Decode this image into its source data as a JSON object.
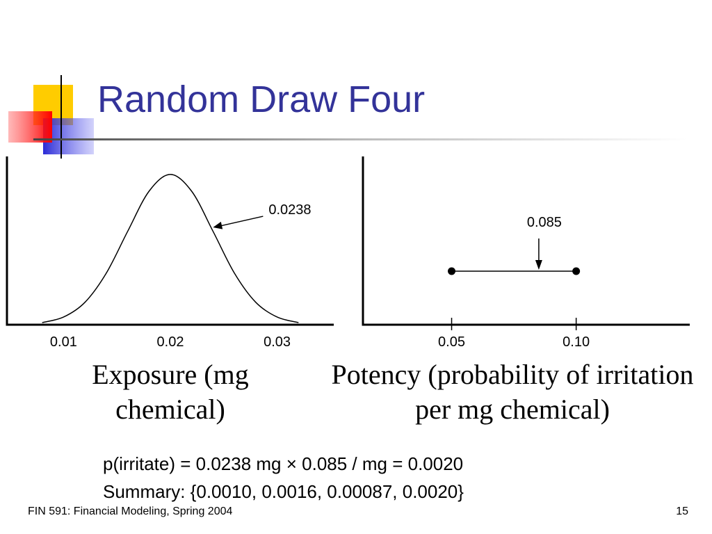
{
  "title": "Random Draw Four",
  "chart_data": [
    {
      "type": "line",
      "axis_label": "Exposure (mg chemical)",
      "x": [
        0.008,
        0.01,
        0.012,
        0.014,
        0.016,
        0.018,
        0.02,
        0.022,
        0.024,
        0.026,
        0.028,
        0.03,
        0.032
      ],
      "values": [
        0.014,
        0.051,
        0.149,
        0.343,
        0.621,
        0.888,
        1,
        0.888,
        0.621,
        0.343,
        0.149,
        0.051,
        0.014
      ],
      "xlim": [
        0.0047,
        0.0353
      ],
      "ylim": [
        0,
        1.12
      ],
      "xticks": [
        0.01,
        0.02,
        0.03
      ],
      "annotation": 0.0238,
      "color": "#000000"
    },
    {
      "type": "range",
      "axis_label": "Potency (probability of irritation per mg chemical)",
      "range": [
        0.05,
        0.1
      ],
      "xlim": [
        0.0144,
        0.1456
      ],
      "xticks": [
        0.05,
        {
          "value": 0.1,
          "label": "0.10"
        }
      ],
      "annotation": 0.085,
      "color": "#000000"
    }
  ],
  "body": [
    "p(irritate) = 0.0238 mg × 0.085 / mg = 0.0020",
    "Summary: {0.0010, 0.0016, 0.00087, 0.0020}"
  ],
  "footer": "FIN 591: Financial Modeling, Spring 2004",
  "page_number": 15
}
